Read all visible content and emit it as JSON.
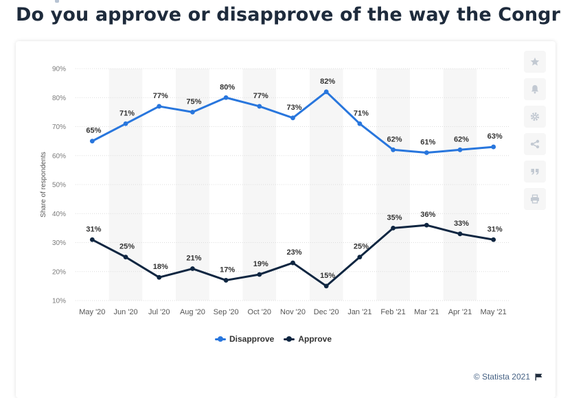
{
  "page": {
    "title": "Do you approve or disapprove of the way the Congress is handling its job?"
  },
  "toolbar": {
    "buttons": [
      {
        "name": "favorite",
        "icon": "star-icon"
      },
      {
        "name": "notification",
        "icon": "bell-icon"
      },
      {
        "name": "settings",
        "icon": "gear-icon"
      },
      {
        "name": "share",
        "icon": "share-icon"
      },
      {
        "name": "citation",
        "icon": "quote-icon"
      },
      {
        "name": "print",
        "icon": "printer-icon"
      }
    ]
  },
  "credit": {
    "text": "© Statista 2021",
    "icon": "flag-icon"
  },
  "colors": {
    "disapprove": "#2876dd",
    "approve": "#0f2641",
    "band": "#f6f6f6",
    "grid": "#dcdcdc",
    "tick": "#7a7a7a",
    "label": "#333333"
  },
  "chart_data": {
    "type": "line",
    "title": "Do you approve or disapprove of the way the Congress is handling its job?",
    "xlabel": "",
    "ylabel": "Share of respondents",
    "ylim": [
      10,
      90
    ],
    "yticks": [
      10,
      20,
      30,
      40,
      50,
      60,
      70,
      80,
      90
    ],
    "ytick_labels": [
      "10%",
      "20%",
      "30%",
      "40%",
      "50%",
      "60%",
      "70%",
      "80%",
      "90%"
    ],
    "grid": true,
    "legend_position": "bottom-center",
    "categories": [
      "May '20",
      "Jun '20",
      "Jul '20",
      "Aug '20",
      "Sep '20",
      "Oct '20",
      "Nov '20",
      "Dec '20",
      "Jan '21",
      "Feb '21",
      "Mar '21",
      "Apr '21",
      "May '21"
    ],
    "series": [
      {
        "name": "Disapprove",
        "color": "#2876dd",
        "values": [
          65,
          71,
          77,
          75,
          80,
          77,
          73,
          82,
          71,
          62,
          61,
          62,
          63
        ],
        "labels": [
          "65%",
          "71%",
          "77%",
          "75%",
          "80%",
          "77%",
          "73%",
          "82%",
          "71%",
          "62%",
          "61%",
          "62%",
          "63%"
        ]
      },
      {
        "name": "Approve",
        "color": "#0f2641",
        "values": [
          31,
          25,
          18,
          21,
          17,
          19,
          23,
          15,
          25,
          35,
          36,
          33,
          31
        ],
        "labels": [
          "31%",
          "25%",
          "18%",
          "21%",
          "17%",
          "19%",
          "23%",
          "15%",
          "25%",
          "35%",
          "36%",
          "33%",
          "31%"
        ]
      }
    ]
  }
}
